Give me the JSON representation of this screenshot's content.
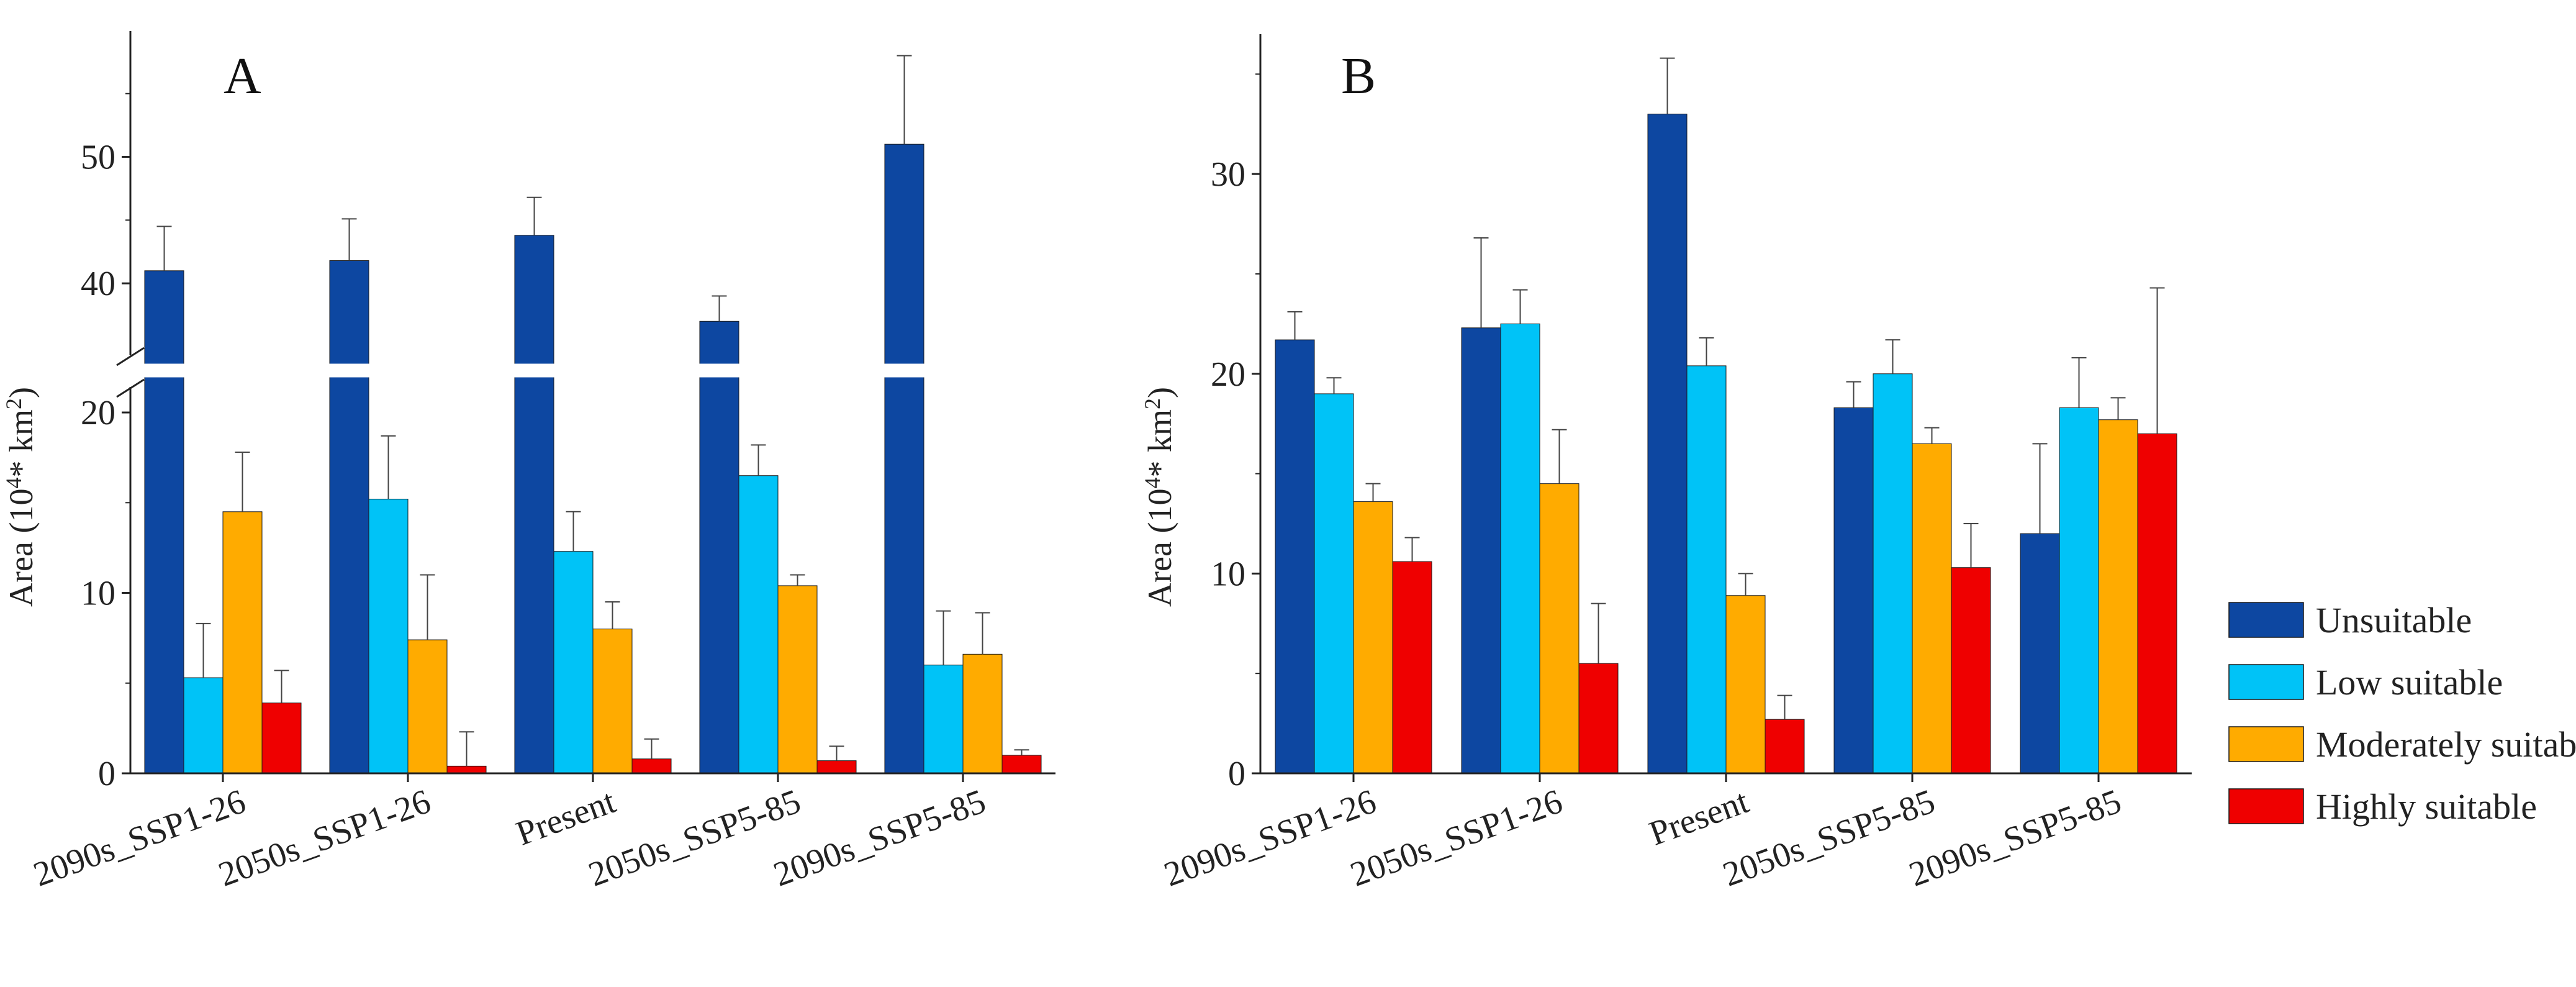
{
  "chart_data": [
    {
      "type": "bar",
      "panel": "A",
      "ylabel_prefix": "Area (10",
      "ylabel_exp1": "4",
      "ylabel_mid": "* km",
      "ylabel_exp2": "2",
      "ylabel_suffix": ")",
      "axis_break": [
        21,
        35
      ],
      "ylim_lower": [
        0,
        21
      ],
      "ylim_upper": [
        35,
        57
      ],
      "yticks": [
        0,
        10,
        20,
        40,
        50
      ],
      "categories": [
        "2090s_SSP1-26",
        "2050s_SSP1-26",
        "Present",
        "2050s_SSP5-85",
        "2090s_SSP5-85"
      ],
      "series": [
        {
          "name": "Unsuitable",
          "values": [
            41,
            41.8,
            43.8,
            37,
            51
          ],
          "errors": [
            3.5,
            3.3,
            3,
            2,
            7
          ]
        },
        {
          "name": "Low suitable",
          "values": [
            5.3,
            15.2,
            12.3,
            16.5,
            6
          ],
          "errors": [
            3,
            3.5,
            2.2,
            1.7,
            3
          ]
        },
        {
          "name": "Moderately suitable",
          "values": [
            14.5,
            7.4,
            8,
            10.4,
            6.6
          ],
          "errors": [
            3.3,
            3.6,
            1.5,
            0.6,
            2.3
          ]
        },
        {
          "name": "Highly suitable",
          "values": [
            3.9,
            0.4,
            0.8,
            0.7,
            1.0
          ],
          "errors": [
            1.8,
            1.9,
            1.1,
            0.8,
            0.3
          ]
        }
      ]
    },
    {
      "type": "bar",
      "panel": "B",
      "ylabel_prefix": "Area (10",
      "ylabel_exp1": "4",
      "ylabel_mid": "* km",
      "ylabel_exp2": "2",
      "ylabel_suffix": ")",
      "ylim": [
        0,
        37
      ],
      "yticks": [
        0,
        10,
        20,
        30
      ],
      "categories": [
        "2090s_SSP1-26",
        "2050s_SSP1-26",
        "Present",
        "2050s_SSP5-85",
        "2090s_SSP5-85"
      ],
      "series": [
        {
          "name": "Unsuitable",
          "values": [
            21.7,
            22.3,
            33,
            18.3,
            12
          ],
          "errors": [
            1.4,
            4.5,
            2.8,
            1.3,
            4.5
          ]
        },
        {
          "name": "Low suitable",
          "values": [
            19,
            22.5,
            20.4,
            20,
            18.3
          ],
          "errors": [
            0.8,
            1.7,
            1.4,
            1.7,
            2.5
          ]
        },
        {
          "name": "Moderately suitable",
          "values": [
            13.6,
            14.5,
            8.9,
            16.5,
            17.7
          ],
          "errors": [
            0.9,
            2.7,
            1.1,
            0.8,
            1.1
          ]
        },
        {
          "name": "Highly suitable",
          "values": [
            10.6,
            5.5,
            2.7,
            10.3,
            17
          ],
          "errors": [
            1.2,
            3.0,
            1.2,
            2.2,
            7.3
          ]
        }
      ]
    }
  ],
  "legend": {
    "items": [
      {
        "label": "Unsuitable",
        "color": "#0d47a1"
      },
      {
        "label": "Low suitable",
        "color": "#00c3f7"
      },
      {
        "label": "Moderately suitable",
        "color": "#ffab00"
      },
      {
        "label": "Highly suitable",
        "color": "#ef0000"
      }
    ]
  },
  "colors": {
    "Unsuitable": "#0d47a1",
    "Low suitable": "#00c3f7",
    "Moderately suitable": "#ffab00",
    "Highly suitable": "#ef0000",
    "axis": "#222222",
    "error_bar": "#444444"
  }
}
